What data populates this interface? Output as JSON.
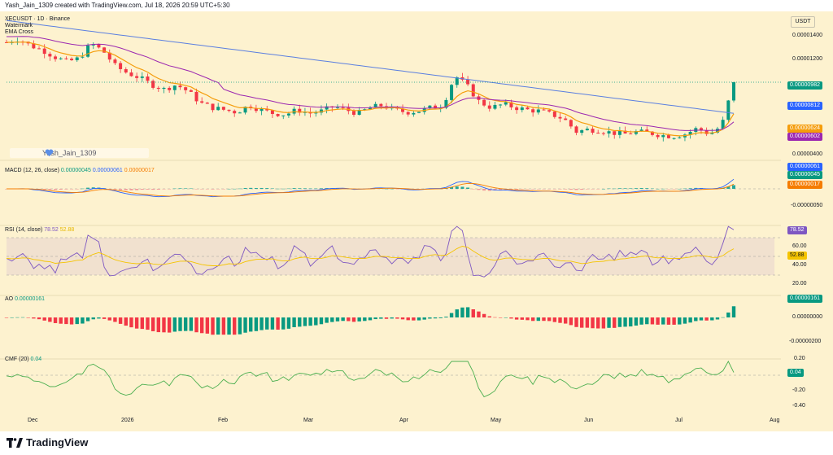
{
  "header": {
    "created_text": "Yash_Jain_1309 created with TradingView.com, Jul 18, 2026 20:59 UTC+5:30"
  },
  "price_pane": {
    "title": "XECUSDT · 1D · Binance",
    "line2": "Watermark",
    "line3": "EMA Cross",
    "currency": "USDT",
    "watermark_text": "Yash_Jain_1309",
    "axis_ticks": [
      "0.00001400",
      "0.00001200",
      "0.00000400"
    ],
    "badges": [
      {
        "text": "0.00000982",
        "color": "#089981"
      },
      {
        "text": "0.00000812",
        "color": "#2962ff"
      },
      {
        "text": "0.00000624",
        "color": "#f59d0b"
      },
      {
        "text": "0.00000602",
        "color": "#9c27b0"
      }
    ]
  },
  "macd_pane": {
    "label": "MACD (12, 26, close)",
    "v1": "0.00000045",
    "v2": "0.00000061",
    "v3": "0.00000017",
    "axis_ticks": [
      "-0.00000050"
    ],
    "badges": [
      {
        "text": "0.00000061",
        "color": "#2962ff"
      },
      {
        "text": "0.00000045",
        "color": "#089981"
      },
      {
        "text": "0.00000017",
        "color": "#f57c00"
      }
    ]
  },
  "rsi_pane": {
    "label": "RSI (14, close)",
    "v1": "78.52",
    "v2": "52.88",
    "axis_ticks": [
      "60.00",
      "40.00",
      "20.00"
    ],
    "badges": [
      {
        "text": "78.52",
        "color": "#7e57c2"
      },
      {
        "text": "52.88",
        "color": "#f5c400"
      }
    ]
  },
  "ao_pane": {
    "label": "AO",
    "v1": "0.00000161",
    "axis_ticks": [
      "0.00000000",
      "-0.00000200"
    ],
    "badges": [
      {
        "text": "0.00000161",
        "color": "#089981"
      }
    ]
  },
  "cmf_pane": {
    "label": "CMF (20)",
    "v1": "0.04",
    "axis_ticks": [
      "0.20",
      "-0.20",
      "-0.40"
    ],
    "badges": [
      {
        "text": "0.04",
        "color": "#089981"
      }
    ]
  },
  "x_axis": [
    "Dec",
    "2026",
    "Feb",
    "Mar",
    "Apr",
    "May",
    "Jun",
    "Jul",
    "Aug"
  ],
  "footer": {
    "brand": "TradingView"
  },
  "colors": {
    "bg": "#fdf2cf",
    "up": "#089981",
    "down": "#f23645",
    "ema_fast": "#f59d0b",
    "ema_slow": "#9c27b0",
    "ma_long": "#5b7fe0"
  },
  "chart_data": [
    {
      "type": "line",
      "title": "XECUSDT · 1D · Binance",
      "series": [
        {
          "name": "",
          "values": [
            13.3,
            13.6,
            13.0,
            12.6,
            12.0,
            11.6,
            11.9,
            13.2,
            12.5,
            11.2,
            10.6,
            10.2,
            9.6,
            9.2,
            9.6,
            9.0,
            8.0,
            7.6,
            7.4,
            7.2,
            7.8,
            7.4,
            7.1,
            7.0,
            7.4,
            7.1,
            7.3,
            7.7,
            7.4,
            7.1,
            7.6,
            7.8,
            7.4,
            7.2,
            7.3,
            7.6,
            7.8,
            10.4,
            9.5,
            8.1,
            7.6,
            7.9,
            7.6,
            7.4,
            7.3,
            7.0,
            6.6,
            5.5,
            5.7,
            5.6,
            5.4,
            5.3,
            5.5,
            5.4,
            5.2,
            5.1,
            5.3,
            5.8,
            5.3,
            6.0,
            9.82
          ]
        }
      ],
      "ylim": [
        3.5,
        15
      ],
      "ylabel": ""
    }
  ]
}
